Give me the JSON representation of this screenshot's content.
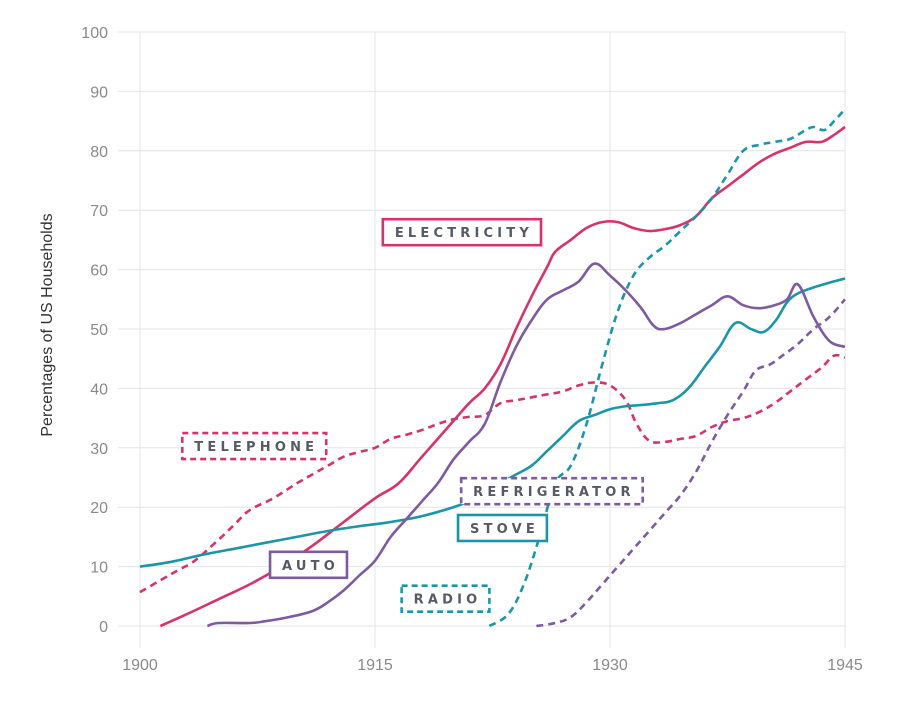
{
  "chart_data": {
    "type": "line",
    "title": "",
    "xlabel": "",
    "ylabel": "Percentages of US Households",
    "xlim": [
      1900,
      1945
    ],
    "ylim": [
      0,
      100
    ],
    "x_ticks": [
      "1900",
      "1915",
      "1930",
      "1945"
    ],
    "y_ticks": [
      "0",
      "10",
      "20",
      "30",
      "40",
      "50",
      "60",
      "70",
      "80",
      "90",
      "100"
    ],
    "grid": true,
    "series": [
      {
        "name": "ELECTRICITY",
        "color": "#d6336c",
        "style": "solid",
        "points": [
          [
            1901.3,
            0
          ],
          [
            1903,
            2
          ],
          [
            1905,
            4.5
          ],
          [
            1907,
            7
          ],
          [
            1909,
            10
          ],
          [
            1911,
            13.5
          ],
          [
            1913,
            17.5
          ],
          [
            1915,
            21.5
          ],
          [
            1916.5,
            24
          ],
          [
            1918,
            28.5
          ],
          [
            1920,
            34.5
          ],
          [
            1921,
            37.5
          ],
          [
            1922,
            40
          ],
          [
            1923,
            44
          ],
          [
            1924,
            50
          ],
          [
            1925,
            55.5
          ],
          [
            1926,
            60.5
          ],
          [
            1926.5,
            63
          ],
          [
            1927.5,
            65
          ],
          [
            1928.5,
            67
          ],
          [
            1929.5,
            68
          ],
          [
            1930.5,
            68
          ],
          [
            1931.5,
            67
          ],
          [
            1932.5,
            66.5
          ],
          [
            1933.5,
            66.8
          ],
          [
            1934.5,
            67.5
          ],
          [
            1935.5,
            69
          ],
          [
            1936.5,
            72
          ],
          [
            1937.5,
            74
          ],
          [
            1938.5,
            76
          ],
          [
            1939.5,
            78
          ],
          [
            1940.5,
            79.5
          ],
          [
            1941.5,
            80.5
          ],
          [
            1942.5,
            81.5
          ],
          [
            1943.5,
            81.5
          ],
          [
            1944.2,
            82.5
          ],
          [
            1945,
            84
          ]
        ]
      },
      {
        "name": "TELEPHONE",
        "color": "#d6336c",
        "style": "dashed",
        "points": [
          [
            1900,
            5.7
          ],
          [
            1901.5,
            8
          ],
          [
            1902.5,
            9.5
          ],
          [
            1903.5,
            11
          ],
          [
            1905,
            14.5
          ],
          [
            1906,
            17
          ],
          [
            1907,
            19.5
          ],
          [
            1908.5,
            21.5
          ],
          [
            1910,
            24
          ],
          [
            1911,
            25.5
          ],
          [
            1912,
            27
          ],
          [
            1913,
            28.5
          ],
          [
            1914,
            29.3
          ],
          [
            1915,
            30
          ],
          [
            1916,
            31.5
          ],
          [
            1917,
            32.2
          ],
          [
            1918,
            33
          ],
          [
            1919,
            34
          ],
          [
            1920,
            34.8
          ],
          [
            1921,
            35.2
          ],
          [
            1922,
            35.5
          ],
          [
            1923,
            37.5
          ],
          [
            1924,
            38
          ],
          [
            1925,
            38.5
          ],
          [
            1926,
            39
          ],
          [
            1927,
            39.5
          ],
          [
            1928,
            40.5
          ],
          [
            1929,
            41
          ],
          [
            1930,
            40.5
          ],
          [
            1931,
            38
          ],
          [
            1931.7,
            34
          ],
          [
            1932.5,
            31.2
          ],
          [
            1933.5,
            31
          ],
          [
            1934.5,
            31.5
          ],
          [
            1935.5,
            32
          ],
          [
            1936.5,
            33.5
          ],
          [
            1937.5,
            34.5
          ],
          [
            1938.5,
            35
          ],
          [
            1939.5,
            36
          ],
          [
            1940.5,
            37.5
          ],
          [
            1941.5,
            39.5
          ],
          [
            1942.5,
            41.5
          ],
          [
            1943.5,
            43.5
          ],
          [
            1944.3,
            45.5
          ],
          [
            1945,
            45.2
          ]
        ]
      },
      {
        "name": "STOVE",
        "color": "#1b96a6",
        "style": "solid",
        "points": [
          [
            1900,
            10
          ],
          [
            1902,
            10.8
          ],
          [
            1904,
            12
          ],
          [
            1906,
            13
          ],
          [
            1908,
            14
          ],
          [
            1910,
            15
          ],
          [
            1912,
            16
          ],
          [
            1914,
            16.8
          ],
          [
            1916,
            17.5
          ],
          [
            1918,
            18.5
          ],
          [
            1920,
            20
          ],
          [
            1921,
            21
          ],
          [
            1922,
            22.5
          ],
          [
            1923,
            24
          ],
          [
            1924,
            25.5
          ],
          [
            1925,
            27
          ],
          [
            1926,
            29.5
          ],
          [
            1927,
            32
          ],
          [
            1928,
            34.5
          ],
          [
            1929,
            35.5
          ],
          [
            1930,
            36.5
          ],
          [
            1931,
            37
          ],
          [
            1932,
            37.2
          ],
          [
            1933,
            37.5
          ],
          [
            1934,
            38
          ],
          [
            1935,
            40
          ],
          [
            1936,
            43.5
          ],
          [
            1937,
            47
          ],
          [
            1938,
            51
          ],
          [
            1939,
            50
          ],
          [
            1939.8,
            49.5
          ],
          [
            1940.6,
            51.5
          ],
          [
            1941.3,
            54.5
          ],
          [
            1942,
            56
          ],
          [
            1943,
            57
          ],
          [
            1944,
            57.8
          ],
          [
            1945,
            58.5
          ]
        ]
      },
      {
        "name": "AUTO",
        "color": "#7e5aa0",
        "style": "solid",
        "points": [
          [
            1904.3,
            0
          ],
          [
            1905,
            0.5
          ],
          [
            1907,
            0.5
          ],
          [
            1908,
            0.8
          ],
          [
            1909.5,
            1.5
          ],
          [
            1911,
            2.5
          ],
          [
            1912,
            4
          ],
          [
            1913,
            6
          ],
          [
            1914,
            8.5
          ],
          [
            1915,
            11
          ],
          [
            1916,
            15
          ],
          [
            1917,
            18
          ],
          [
            1918,
            21
          ],
          [
            1919,
            24
          ],
          [
            1920,
            28
          ],
          [
            1921,
            31
          ],
          [
            1922,
            34
          ],
          [
            1923,
            41
          ],
          [
            1924,
            47
          ],
          [
            1925,
            51.5
          ],
          [
            1926,
            55
          ],
          [
            1927,
            56.5
          ],
          [
            1928,
            58
          ],
          [
            1929,
            61
          ],
          [
            1930,
            59
          ],
          [
            1931,
            56.5
          ],
          [
            1932,
            53.5
          ],
          [
            1932.8,
            50.5
          ],
          [
            1933.5,
            50
          ],
          [
            1934.5,
            51
          ],
          [
            1935.5,
            52.5
          ],
          [
            1936.5,
            54
          ],
          [
            1937.5,
            55.5
          ],
          [
            1938.5,
            54
          ],
          [
            1939.5,
            53.5
          ],
          [
            1940.5,
            54
          ],
          [
            1941.3,
            55
          ],
          [
            1942,
            57.5
          ],
          [
            1943,
            52
          ],
          [
            1944,
            48
          ],
          [
            1945,
            47
          ]
        ]
      },
      {
        "name": "RADIO",
        "color": "#1b96a6",
        "style": "dashed",
        "points": [
          [
            1922.3,
            0
          ],
          [
            1923.5,
            2
          ],
          [
            1924.5,
            7
          ],
          [
            1925.5,
            15
          ],
          [
            1926.5,
            24
          ],
          [
            1927.5,
            27
          ],
          [
            1928.5,
            34
          ],
          [
            1929.5,
            44
          ],
          [
            1930.5,
            53
          ],
          [
            1931.5,
            59
          ],
          [
            1932.5,
            62
          ],
          [
            1933.5,
            64
          ],
          [
            1934.5,
            66.5
          ],
          [
            1935.5,
            69
          ],
          [
            1936.5,
            72
          ],
          [
            1937.5,
            76
          ],
          [
            1938.5,
            80
          ],
          [
            1939.5,
            81
          ],
          [
            1940.5,
            81.5
          ],
          [
            1941.5,
            82
          ],
          [
            1942.5,
            83.5
          ],
          [
            1943,
            84
          ],
          [
            1943.7,
            83.5
          ],
          [
            1944.3,
            85
          ],
          [
            1945,
            87
          ]
        ]
      },
      {
        "name": "REFRIGERATOR",
        "color": "#7e5aa0",
        "style": "dashed",
        "points": [
          [
            1925.3,
            0
          ],
          [
            1926.5,
            0.5
          ],
          [
            1927.5,
            1.5
          ],
          [
            1928.5,
            4
          ],
          [
            1929.5,
            7
          ],
          [
            1930.5,
            10
          ],
          [
            1931.5,
            13
          ],
          [
            1932.5,
            16
          ],
          [
            1933.5,
            19
          ],
          [
            1934.5,
            22
          ],
          [
            1935.5,
            26
          ],
          [
            1936.5,
            31
          ],
          [
            1937.5,
            35.5
          ],
          [
            1938.5,
            39.5
          ],
          [
            1939.3,
            43
          ],
          [
            1940.2,
            44
          ],
          [
            1941,
            45.5
          ],
          [
            1942,
            47.5
          ],
          [
            1943,
            50
          ],
          [
            1944,
            52
          ],
          [
            1945,
            55
          ]
        ]
      }
    ],
    "annotations": [
      {
        "text": "ELECTRICITY",
        "color": "#d6336c",
        "style": "solid",
        "x": 1915.5,
        "y": 66.3
      },
      {
        "text": "TELEPHONE",
        "color": "#d6336c",
        "style": "dashed",
        "x": 1902.7,
        "y": 30.3
      },
      {
        "text": "REFRIGERATOR",
        "color": "#7e5aa0",
        "style": "dashed",
        "x": 1920.5,
        "y": 22.7
      },
      {
        "text": "STOVE",
        "color": "#1b96a6",
        "style": "solid",
        "x": 1920.3,
        "y": 16.5
      },
      {
        "text": "AUTO",
        "color": "#7e5aa0",
        "style": "solid",
        "x": 1908.3,
        "y": 10.3
      },
      {
        "text": "RADIO",
        "color": "#1b96a6",
        "style": "dashed",
        "x": 1916.7,
        "y": 4.6
      }
    ]
  }
}
